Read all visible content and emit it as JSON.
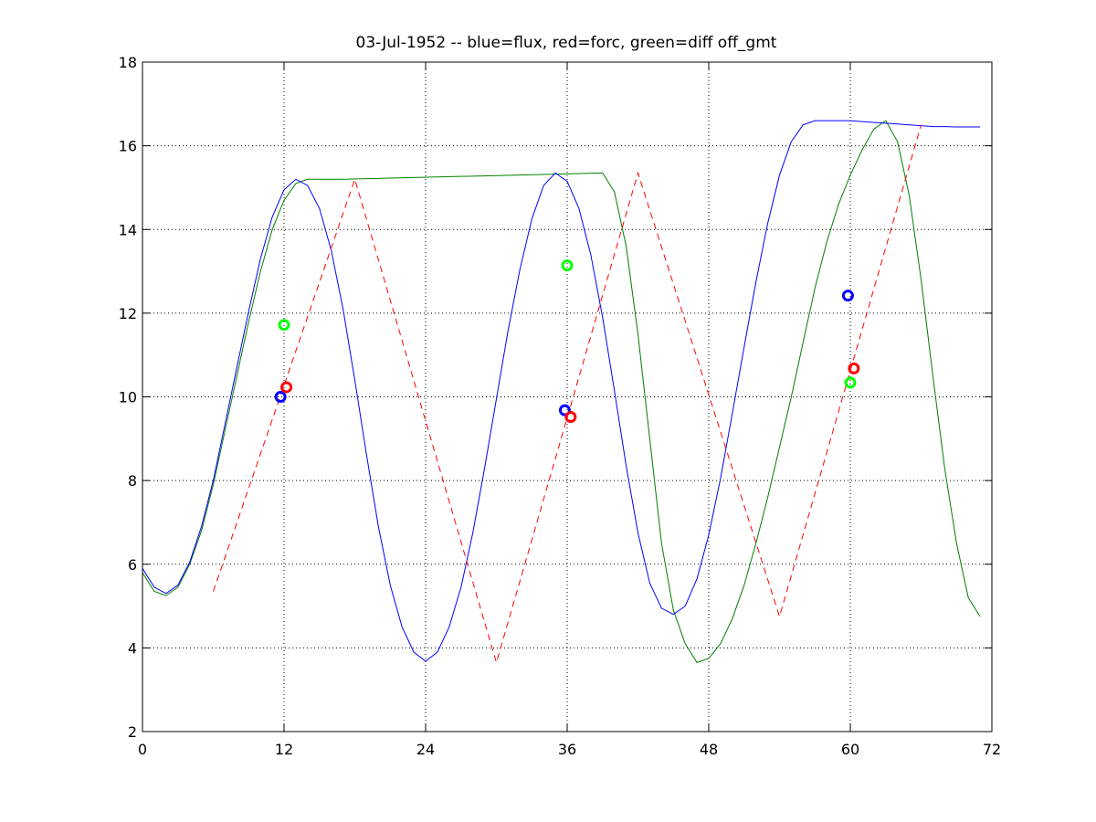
{
  "chart_data": {
    "type": "line",
    "title": "03-Jul-1952 -- blue=flux, red=forc, green=diff off_gmt",
    "xlabel": "",
    "ylabel": "",
    "xlim": [
      0,
      72
    ],
    "ylim": [
      2,
      18
    ],
    "xticks": [
      0,
      12,
      24,
      36,
      48,
      60,
      72
    ],
    "yticks": [
      2,
      4,
      6,
      8,
      10,
      12,
      14,
      16,
      18
    ],
    "xtick_labels": [
      "0",
      "12",
      "24",
      "36",
      "48",
      "60",
      "72"
    ],
    "ytick_labels": [
      "2",
      "4",
      "6",
      "8",
      "10",
      "12",
      "14",
      "16",
      "18"
    ],
    "grid": true,
    "grid_style": "dotted",
    "series": [
      {
        "key": "green",
        "color": "#007f00",
        "style": "solid",
        "x": [
          0,
          1,
          2,
          3,
          4,
          5,
          6,
          7,
          8,
          9,
          10,
          11,
          12,
          13,
          14,
          17,
          39,
          40,
          41,
          42,
          43,
          44,
          45,
          46,
          47,
          48,
          49,
          50,
          51,
          52,
          53,
          54,
          55,
          56,
          57,
          58,
          59,
          60,
          61,
          62,
          63,
          64,
          65,
          66,
          67,
          68,
          69,
          70,
          71
        ],
        "y": [
          5.8,
          5.35,
          5.25,
          5.45,
          6.0,
          6.8,
          7.9,
          9.2,
          10.5,
          11.8,
          13.0,
          14.0,
          14.7,
          15.1,
          15.2,
          15.2,
          15.35,
          14.9,
          13.6,
          11.5,
          9.0,
          6.5,
          4.9,
          4.1,
          3.65,
          3.75,
          4.1,
          4.7,
          5.5,
          6.5,
          7.6,
          8.8,
          10.0,
          11.3,
          12.6,
          13.7,
          14.6,
          15.3,
          15.9,
          16.4,
          16.6,
          16.1,
          14.8,
          12.8,
          10.5,
          8.3,
          6.5,
          5.2,
          4.75
        ]
      },
      {
        "key": "blue",
        "color": "#0000ff",
        "style": "solid",
        "x": [
          0,
          1,
          2,
          3,
          4,
          5,
          6,
          7,
          8,
          9,
          10,
          11,
          12,
          13,
          14,
          15,
          16,
          17,
          18,
          19,
          20,
          21,
          22,
          23,
          24,
          25,
          26,
          27,
          28,
          29,
          30,
          31,
          32,
          33,
          34,
          35,
          36,
          37,
          38,
          39,
          40,
          41,
          42,
          43,
          44,
          45,
          46,
          47,
          48,
          49,
          50,
          51,
          52,
          53,
          54,
          55,
          56,
          57,
          58,
          59,
          60,
          61,
          62,
          63,
          64,
          65,
          66,
          67,
          68,
          69,
          70,
          71
        ],
        "y": [
          5.9,
          5.45,
          5.3,
          5.5,
          6.05,
          6.9,
          8.0,
          9.35,
          10.7,
          12.05,
          13.3,
          14.3,
          14.95,
          15.2,
          15.05,
          14.5,
          13.5,
          12.1,
          10.4,
          8.6,
          6.9,
          5.5,
          4.5,
          3.9,
          3.68,
          3.9,
          4.5,
          5.45,
          6.75,
          8.3,
          9.95,
          11.6,
          13.05,
          14.25,
          15.05,
          15.35,
          15.15,
          14.5,
          13.4,
          11.9,
          10.15,
          8.35,
          6.75,
          5.55,
          4.95,
          4.8,
          5.0,
          5.65,
          6.7,
          8.05,
          9.6,
          11.2,
          12.75,
          14.15,
          15.3,
          16.1,
          16.5,
          16.6,
          16.6,
          16.6,
          16.6,
          16.58,
          16.56,
          16.54,
          16.52,
          16.5,
          16.48,
          16.46,
          16.46,
          16.45,
          16.45,
          16.45
        ]
      },
      {
        "key": "red",
        "color": "#ff0000",
        "style": "dashed",
        "x": [
          6,
          18,
          30,
          42,
          54,
          66
        ],
        "y": [
          5.35,
          15.2,
          3.65,
          15.35,
          4.75,
          16.5
        ]
      }
    ],
    "markers": [
      {
        "color": "#0000ff",
        "x": 11.7,
        "y": 10.0
      },
      {
        "color": "#ff0000",
        "x": 12.2,
        "y": 10.23
      },
      {
        "color": "#00ff00",
        "x": 12.0,
        "y": 11.72
      },
      {
        "color": "#0000ff",
        "x": 35.8,
        "y": 9.68
      },
      {
        "color": "#ff0000",
        "x": 36.3,
        "y": 9.52
      },
      {
        "color": "#00ff00",
        "x": 36.0,
        "y": 13.14
      },
      {
        "color": "#0000ff",
        "x": 59.8,
        "y": 12.42
      },
      {
        "color": "#ff0000",
        "x": 60.3,
        "y": 10.68
      },
      {
        "color": "#00ff00",
        "x": 60.0,
        "y": 10.34
      }
    ]
  }
}
